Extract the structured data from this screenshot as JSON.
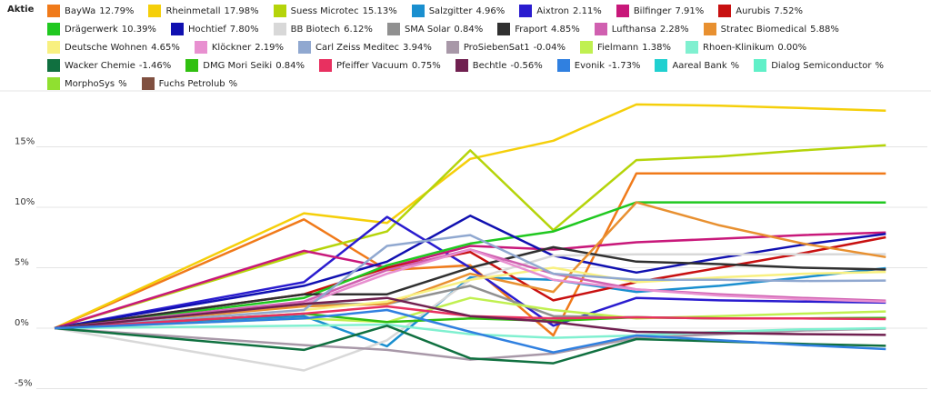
{
  "chart_data": {
    "type": "line",
    "legend_title": "Aktie",
    "x": [
      0,
      3,
      4,
      5,
      6,
      7,
      8,
      9,
      10
    ],
    "xlim": [
      -0.46,
      10.5
    ],
    "ylim": [
      -5.94,
      19.62
    ],
    "yticks": [
      {
        "value": -5,
        "label": "-5%"
      },
      {
        "value": 0,
        "label": "0%"
      },
      {
        "value": 5,
        "label": "5%"
      },
      {
        "value": 10,
        "label": "10%"
      },
      {
        "value": 15,
        "label": "15%"
      }
    ],
    "grid": true,
    "series": [
      {
        "name": "BayWa",
        "legend_value": "12.79%",
        "color": "#f07a1a",
        "values": [
          0,
          9.0,
          4.8,
          5.2,
          -0.6,
          12.8,
          12.8,
          12.8,
          12.79
        ]
      },
      {
        "name": "Rheinmetall",
        "legend_value": "17.98%",
        "color": "#f5cf0a",
        "values": [
          0,
          9.5,
          8.7,
          14.0,
          15.5,
          18.5,
          18.4,
          18.2,
          17.98
        ]
      },
      {
        "name": "Suess Microtec",
        "legend_value": "15.13%",
        "color": "#b5d40a",
        "values": [
          0,
          6.2,
          8.0,
          14.7,
          8.1,
          13.9,
          14.2,
          14.7,
          15.13
        ]
      },
      {
        "name": "Salzgitter",
        "legend_value": "4.96%",
        "color": "#1a8fcf",
        "values": [
          0,
          1.0,
          -1.5,
          4.2,
          4.0,
          3.0,
          3.5,
          4.2,
          4.96
        ]
      },
      {
        "name": "Aixtron",
        "legend_value": "2.11%",
        "color": "#2a1ccf",
        "values": [
          0,
          3.8,
          9.2,
          5.0,
          0.2,
          2.5,
          2.3,
          2.2,
          2.11
        ]
      },
      {
        "name": "Bilfinger",
        "legend_value": "7.91%",
        "color": "#c8187a",
        "values": [
          0,
          6.4,
          5.0,
          6.8,
          6.5,
          7.1,
          7.4,
          7.7,
          7.91
        ]
      },
      {
        "name": "Aurubis",
        "legend_value": "7.52%",
        "color": "#c81010",
        "values": [
          0,
          2.8,
          5.0,
          6.3,
          2.3,
          3.8,
          5.0,
          6.2,
          7.52
        ]
      },
      {
        "name": "Drägerwerk",
        "legend_value": "10.39%",
        "color": "#20c820",
        "values": [
          0,
          2.5,
          5.2,
          7.0,
          8.0,
          10.4,
          10.4,
          10.4,
          10.39
        ]
      },
      {
        "name": "Hochtief",
        "legend_value": "7.80%",
        "color": "#1010b0",
        "values": [
          0,
          3.5,
          5.5,
          9.3,
          6.0,
          4.6,
          5.8,
          6.9,
          7.8
        ]
      },
      {
        "name": "BB Biotech",
        "legend_value": "6.12%",
        "color": "#d8d8d8",
        "values": [
          0,
          -3.5,
          -1.0,
          4.0,
          6.0,
          6.1,
          6.1,
          6.1,
          6.12
        ]
      },
      {
        "name": "SMA Solar",
        "legend_value": "0.84%",
        "color": "#909090",
        "values": [
          0,
          2.0,
          2.0,
          3.5,
          1.0,
          0.9,
          0.8,
          0.8,
          0.84
        ]
      },
      {
        "name": "Fraport",
        "legend_value": "4.85%",
        "color": "#303030",
        "values": [
          0,
          2.8,
          2.8,
          5.0,
          6.7,
          5.5,
          5.3,
          5.0,
          4.85
        ]
      },
      {
        "name": "Lufthansa",
        "legend_value": "2.28%",
        "color": "#d060b0",
        "values": [
          0,
          2.2,
          4.8,
          6.5,
          4.5,
          3.2,
          2.8,
          2.5,
          2.28
        ]
      },
      {
        "name": "Stratec Biomedical",
        "legend_value": "5.88%",
        "color": "#e89030",
        "values": [
          0,
          1.8,
          2.0,
          4.5,
          3.0,
          10.4,
          8.5,
          7.0,
          5.88
        ]
      },
      {
        "name": "Deutsche Wohnen",
        "legend_value": "4.65%",
        "color": "#f8f080",
        "values": [
          0,
          1.5,
          2.2,
          4.0,
          5.0,
          3.8,
          4.2,
          4.5,
          4.65
        ]
      },
      {
        "name": "Klöckner",
        "legend_value": "2.19%",
        "color": "#e890d0",
        "values": [
          0,
          2.0,
          4.5,
          6.5,
          4.0,
          3.2,
          2.7,
          2.4,
          2.19
        ]
      },
      {
        "name": "Carl Zeiss Meditec",
        "legend_value": "3.94%",
        "color": "#90a8d0",
        "values": [
          0,
          1.5,
          6.8,
          7.7,
          4.5,
          4.0,
          4.0,
          3.9,
          3.94
        ]
      },
      {
        "name": "ProSiebenSat1",
        "legend_value": "-0.04%",
        "color": "#a898a8",
        "values": [
          0,
          -1.4,
          -1.8,
          -2.6,
          -2.1,
          -0.8,
          -0.5,
          -0.2,
          -0.04
        ]
      },
      {
        "name": "Fielmann",
        "legend_value": "1.38%",
        "color": "#c0f050",
        "values": [
          0,
          0.8,
          0.5,
          2.5,
          1.5,
          0.8,
          1.0,
          1.2,
          1.38
        ]
      },
      {
        "name": "Rhoen-Klinikum",
        "legend_value": "0.00%",
        "color": "#80f0d0",
        "values": [
          0,
          0.2,
          0.3,
          -0.5,
          -0.8,
          -0.6,
          -0.3,
          -0.1,
          0.0
        ]
      },
      {
        "name": "Wacker Chemie",
        "legend_value": "-1.46%",
        "color": "#107040",
        "values": [
          0,
          -1.8,
          0.2,
          -2.5,
          -2.9,
          -0.9,
          -1.1,
          -1.3,
          -1.46
        ]
      },
      {
        "name": "DMG Mori Seiki",
        "legend_value": "0.84%",
        "color": "#30c010",
        "values": [
          0,
          1.2,
          0.5,
          0.8,
          0.6,
          0.9,
          0.8,
          0.8,
          0.84
        ]
      },
      {
        "name": "Pfeiffer Vacuum",
        "legend_value": "0.75%",
        "color": "#e83060",
        "values": [
          0,
          1.2,
          1.8,
          1.0,
          0.8,
          0.9,
          0.8,
          0.8,
          0.75
        ]
      },
      {
        "name": "Bechtle",
        "legend_value": "-0.56%",
        "color": "#702050",
        "values": [
          0,
          2.0,
          2.5,
          1.0,
          0.5,
          -0.3,
          -0.4,
          -0.5,
          -0.56
        ]
      },
      {
        "name": "Evonik",
        "legend_value": "-1.73%",
        "color": "#3080e0",
        "values": [
          0,
          0.8,
          1.5,
          -0.3,
          -2.0,
          -0.6,
          -1.0,
          -1.4,
          -1.73
        ]
      },
      {
        "name": "Aareal Bank",
        "legend_value": "%",
        "color": "#20d0d0",
        "values": [
          null,
          null,
          null,
          null,
          null,
          null,
          null,
          null,
          null
        ]
      },
      {
        "name": "Dialog Semiconductor",
        "legend_value": "%",
        "color": "#60f0c8",
        "values": [
          null,
          null,
          null,
          null,
          null,
          null,
          null,
          null,
          null
        ]
      },
      {
        "name": "MorphoSys",
        "legend_value": "%",
        "color": "#90e030",
        "values": [
          null,
          null,
          null,
          null,
          null,
          null,
          null,
          null,
          null
        ]
      },
      {
        "name": "Fuchs Petrolub",
        "legend_value": "%",
        "color": "#805040",
        "values": [
          null,
          null,
          null,
          null,
          null,
          null,
          null,
          null,
          null
        ]
      }
    ]
  }
}
